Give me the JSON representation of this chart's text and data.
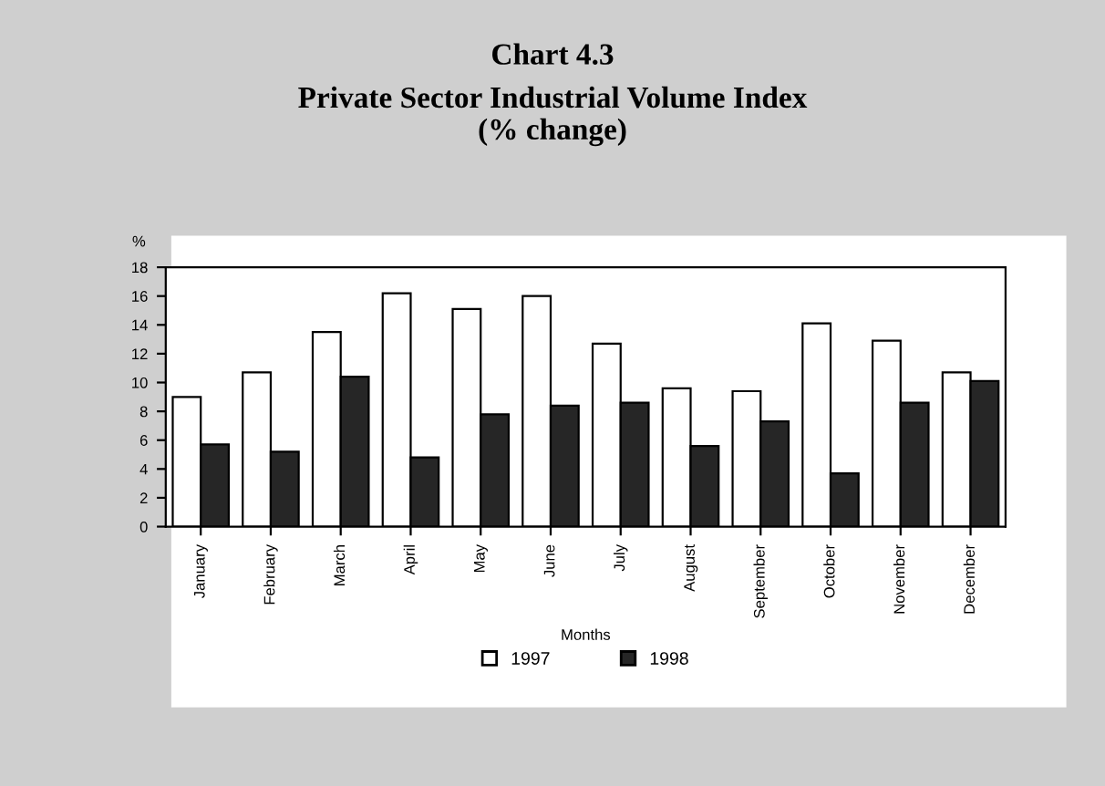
{
  "chart_data": {
    "type": "bar",
    "title": "Chart 4.3",
    "subtitle": "Private Sector Industrial Volume Index\n(% change)",
    "xlabel": "Months",
    "ylabel": "%",
    "categories": [
      "January",
      "February",
      "March",
      "April",
      "May",
      "June",
      "July",
      "August",
      "September",
      "October",
      "November",
      "December"
    ],
    "series": [
      {
        "name": "1997",
        "color": "#ffffff",
        "values": [
          9.0,
          10.7,
          13.5,
          16.2,
          15.1,
          16.0,
          12.7,
          9.6,
          9.4,
          14.1,
          12.9,
          10.7
        ]
      },
      {
        "name": "1998",
        "color": "#262626",
        "values": [
          5.7,
          5.2,
          10.4,
          4.8,
          7.8,
          8.4,
          8.6,
          5.6,
          7.3,
          3.7,
          8.6,
          10.1
        ]
      }
    ],
    "ylim": [
      0,
      18
    ],
    "yticks": [
      0,
      2,
      4,
      6,
      8,
      10,
      12,
      14,
      16,
      18
    ],
    "grid": false,
    "legend": "bottom"
  }
}
